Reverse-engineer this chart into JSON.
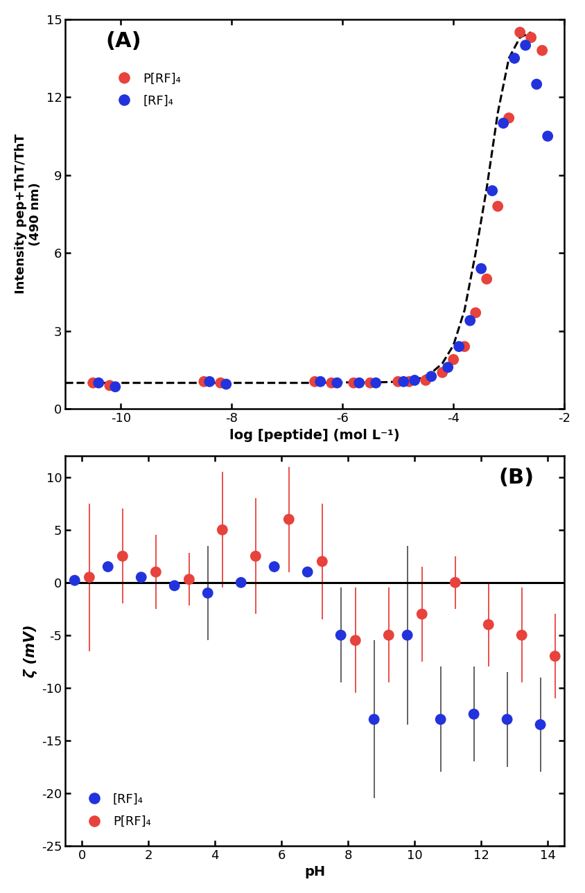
{
  "panel_A": {
    "title": "(A)",
    "xlabel": "log [peptide] (mol L⁻¹)",
    "ylabel": "Intensity pep+ThT/ThT\n(490 nm)",
    "xlim": [
      -11,
      -2
    ],
    "ylim": [
      0,
      15
    ],
    "xticks": [
      -10,
      -8,
      -6,
      -4,
      -2
    ],
    "yticks": [
      0,
      3,
      6,
      9,
      12,
      15
    ],
    "pRF4_x": [
      -10.5,
      -10.2,
      -8.5,
      -8.2,
      -6.5,
      -6.2,
      -5.8,
      -5.5,
      -5.0,
      -4.8,
      -4.5,
      -4.2,
      -4.0,
      -3.8,
      -3.6,
      -3.4,
      -3.2,
      -3.0,
      -2.8,
      -2.6,
      -2.4
    ],
    "pRF4_y": [
      1.0,
      0.9,
      1.05,
      1.0,
      1.05,
      1.0,
      1.0,
      1.0,
      1.05,
      1.05,
      1.1,
      1.4,
      1.9,
      2.4,
      3.7,
      5.0,
      7.8,
      11.2,
      14.5,
      14.3,
      13.8
    ],
    "RF4_x": [
      -10.4,
      -10.1,
      -8.4,
      -8.1,
      -6.4,
      -6.1,
      -5.7,
      -5.4,
      -4.9,
      -4.7,
      -4.4,
      -4.1,
      -3.9,
      -3.7,
      -3.5,
      -3.3,
      -3.1,
      -2.9,
      -2.7,
      -2.5,
      -2.3
    ],
    "RF4_y": [
      1.0,
      0.85,
      1.05,
      0.95,
      1.05,
      1.0,
      1.0,
      1.0,
      1.05,
      1.1,
      1.25,
      1.6,
      2.4,
      3.4,
      5.4,
      8.4,
      11.0,
      13.5,
      14.0,
      12.5,
      10.5
    ],
    "fit_x_low": [
      -11.0,
      -10.5,
      -10.0,
      -9.5,
      -9.0,
      -8.5,
      -8.0,
      -7.5,
      -7.0,
      -6.5,
      -6.0,
      -5.5,
      -5.2,
      -5.0,
      -4.8,
      -4.6,
      -4.4,
      -4.2,
      -4.0,
      -3.8,
      -3.6,
      -3.4,
      -3.2,
      -3.0,
      -2.8,
      -2.6
    ],
    "fit_y_low": [
      1.0,
      1.0,
      1.0,
      1.0,
      1.0,
      1.0,
      1.0,
      1.0,
      1.0,
      1.0,
      1.02,
      1.02,
      1.03,
      1.05,
      1.1,
      1.18,
      1.38,
      1.75,
      2.45,
      3.8,
      6.0,
      8.5,
      11.4,
      13.5,
      14.3,
      14.5
    ],
    "pRF4_color": "#e8423c",
    "RF4_color": "#2233dd",
    "marker_size": 130,
    "legend_pRF4": "P[RF]₄",
    "legend_RF4": "[RF]₄"
  },
  "panel_B": {
    "title": "(B)",
    "xlabel": "pH",
    "ylabel": "ζ (mV)",
    "xlim": [
      -0.5,
      14.5
    ],
    "ylim": [
      -25,
      12
    ],
    "xticks": [
      0,
      2,
      4,
      6,
      8,
      10,
      12,
      14
    ],
    "yticks": [
      -25,
      -20,
      -15,
      -10,
      -5,
      0,
      5,
      10
    ],
    "RF4_x": [
      0.0,
      1.0,
      2.0,
      3.0,
      4.0,
      5.0,
      6.0,
      7.0,
      8.0,
      9.0,
      10.0,
      11.0,
      12.0,
      13.0,
      14.0
    ],
    "RF4_y": [
      0.2,
      1.5,
      0.5,
      -0.3,
      -1.0,
      0.0,
      1.5,
      1.0,
      -5.0,
      -13.0,
      -5.0,
      -13.0,
      -12.5,
      -13.0,
      -13.5
    ],
    "RF4_yerr": [
      0.4,
      0.5,
      0.3,
      0.4,
      4.5,
      0.3,
      0.5,
      0.3,
      4.5,
      7.5,
      8.5,
      5.0,
      4.5,
      4.5,
      4.5
    ],
    "RF4_ecolor": "#555555",
    "pRF4_x": [
      0.0,
      1.0,
      2.0,
      3.0,
      4.0,
      5.0,
      6.0,
      7.0,
      8.0,
      9.0,
      10.0,
      11.0,
      12.0,
      13.0,
      14.0
    ],
    "pRF4_y": [
      0.5,
      2.5,
      1.0,
      0.3,
      5.0,
      2.5,
      6.0,
      2.0,
      -5.5,
      -5.0,
      -3.0,
      0.0,
      -4.0,
      -5.0,
      -7.0
    ],
    "pRF4_yerr": [
      7.0,
      4.5,
      3.5,
      2.5,
      5.5,
      5.5,
      5.0,
      5.5,
      5.0,
      4.5,
      4.5,
      2.5,
      4.0,
      4.5,
      4.0
    ],
    "pRF4_ecolor": "#e8423c",
    "pRF4_color": "#e8423c",
    "RF4_color": "#2233dd",
    "marker_size": 130,
    "legend_RF4": "[RF]₄",
    "legend_pRF4": "P[RF]₄"
  }
}
